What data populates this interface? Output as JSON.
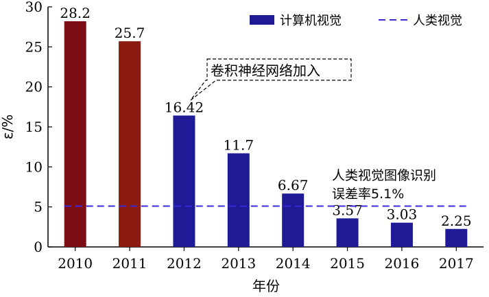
{
  "chart_data": {
    "type": "bar",
    "categories": [
      "2010",
      "2011",
      "2012",
      "2013",
      "2014",
      "2015",
      "2016",
      "2017"
    ],
    "values": [
      28.2,
      25.7,
      16.42,
      11.7,
      6.67,
      3.57,
      3.03,
      2.25
    ],
    "value_labels": [
      "28.2",
      "25.7",
      "16.42",
      "11.7",
      "6.67",
      "3.57",
      "3.03",
      "2.25"
    ],
    "bar_colors": [
      "#7f0d14",
      "#8b1a10",
      "#1f1a96",
      "#1f1a96",
      "#1f1a96",
      "#1f1a96",
      "#1f1a96",
      "#1f1a96"
    ],
    "series": [
      {
        "name": "计算机视觉",
        "values": [
          28.2,
          25.7,
          16.42,
          11.7,
          6.67,
          3.57,
          3.03,
          2.25
        ],
        "color": "#1f1a96"
      },
      {
        "name": "人类视觉",
        "type": "dashed-line",
        "value": 5.1,
        "color": "#3a2bd6"
      }
    ],
    "xlabel": "年份",
    "ylabel": "ε/%",
    "ylim": [
      0,
      30
    ],
    "yticks": [
      0,
      5,
      10,
      15,
      20,
      25,
      30
    ],
    "grid": false,
    "legend_position": "top-right",
    "annotations": {
      "cnn": {
        "text": "卷积神经网络加入",
        "points_to": "2012"
      },
      "human_line1": "人类视觉图像识别",
      "human_line2": "误差率5.1%"
    }
  }
}
